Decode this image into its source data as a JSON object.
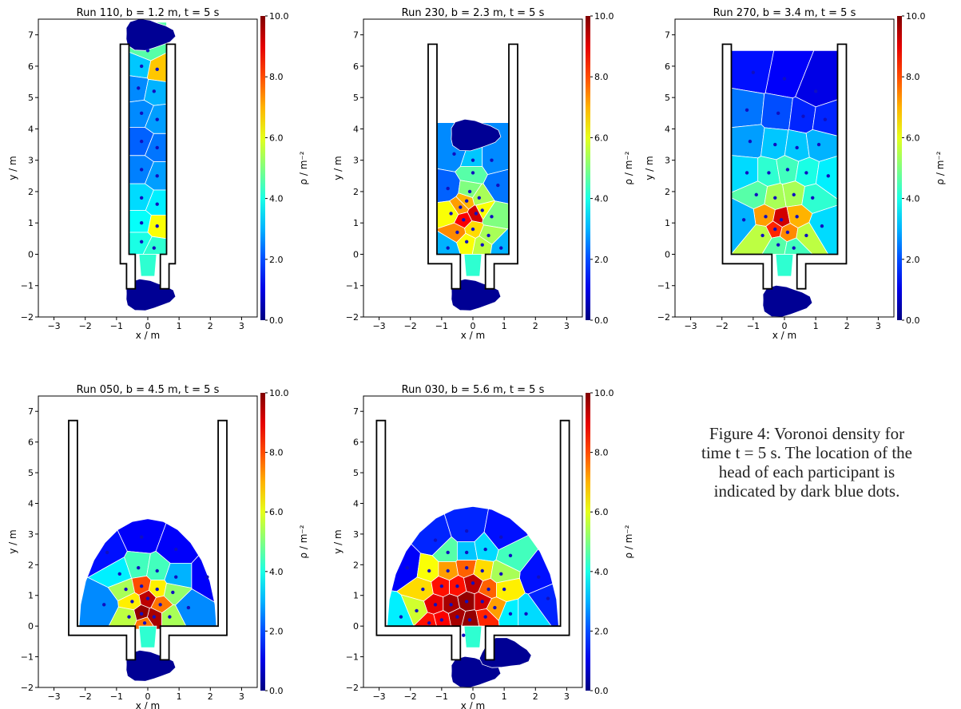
{
  "chart_data": [
    {
      "type": "heatmap",
      "title": "Run 110, b = 1.2 m, t = 5 s",
      "xlabel": "x / m",
      "ylabel": "y / m",
      "colorbar_label": "ρ / m⁻²",
      "xlim": [
        -3.5,
        3.5
      ],
      "ylim": [
        -2,
        7.5
      ],
      "xticks": [
        -3,
        -2,
        -1,
        0,
        1,
        2,
        3
      ],
      "yticks": [
        -2,
        -1,
        0,
        1,
        2,
        3,
        4,
        5,
        6,
        7
      ],
      "cbar_ticks": [
        "0.0",
        "2.0",
        "4.0",
        "6.0",
        "8.0",
        "10.0"
      ],
      "colormap": "jet",
      "bottleneck_width": 1.2,
      "time_s": 5,
      "room_halfwidth": 0.6,
      "crowd_top": 7.4,
      "crowd_front": 0,
      "points": [
        [
          0,
          6.5
        ],
        [
          -0.2,
          6
        ],
        [
          0.3,
          5.9
        ],
        [
          -0.3,
          5.3
        ],
        [
          0.2,
          5.2
        ],
        [
          -0.2,
          4.5
        ],
        [
          0.3,
          4.3
        ],
        [
          -0.2,
          3.6
        ],
        [
          0.3,
          3.4
        ],
        [
          -0.2,
          2.7
        ],
        [
          0.3,
          2.5
        ],
        [
          -0.2,
          1.8
        ],
        [
          0.3,
          1.6
        ],
        [
          -0.2,
          1
        ],
        [
          0.3,
          0.9
        ],
        [
          -0.2,
          0.4
        ],
        [
          0.2,
          0.2
        ]
      ],
      "density": [
        4.6,
        3.2,
        6.8,
        2.6,
        3,
        2.6,
        2.8,
        2.2,
        2.4,
        2.5,
        2.8,
        3.4,
        3.6,
        3.8,
        6.2,
        4,
        4.2
      ],
      "cells_out": [
        [
          0,
          7
        ],
        [
          0,
          -1.3
        ]
      ]
    },
    {
      "type": "heatmap",
      "title": "Run 230, b = 2.3 m, t = 5 s",
      "xlabel": "x / m",
      "ylabel": "y / m",
      "colorbar_label": "ρ / m⁻²",
      "xlim": [
        -3.5,
        3.5
      ],
      "ylim": [
        -2,
        7.5
      ],
      "xticks": [
        -3,
        -2,
        -1,
        0,
        1,
        2,
        3
      ],
      "yticks": [
        -2,
        -1,
        0,
        1,
        2,
        3,
        4,
        5,
        6,
        7
      ],
      "cbar_ticks": [
        "0.0",
        "2.0",
        "4.0",
        "6.0",
        "8.0",
        "10.0"
      ],
      "colormap": "jet",
      "bottleneck_width": 2.3,
      "time_s": 5,
      "room_halfwidth": 1.15,
      "crowd_top": 4.2,
      "crowd_front": 0,
      "points": [
        [
          0,
          3
        ],
        [
          -0.6,
          3.2
        ],
        [
          0.6,
          3
        ],
        [
          0,
          2.6
        ],
        [
          -0.8,
          2.1
        ],
        [
          0.8,
          2.2
        ],
        [
          -0.1,
          2
        ],
        [
          0.2,
          1.8
        ],
        [
          -0.4,
          1.5
        ],
        [
          0.1,
          1.3
        ],
        [
          -0.2,
          1.7
        ],
        [
          -0.7,
          1.3
        ],
        [
          0.6,
          1.2
        ],
        [
          -0.3,
          1.1
        ],
        [
          0.3,
          1.4
        ],
        [
          -0.5,
          0.7
        ],
        [
          0,
          0.8
        ],
        [
          0.5,
          0.6
        ],
        [
          -0.2,
          0.4
        ],
        [
          0.3,
          0.3
        ],
        [
          -0.8,
          0.2
        ],
        [
          0.9,
          0.2
        ]
      ],
      "density": [
        3.2,
        2.6,
        2.6,
        4.6,
        2.2,
        2.4,
        5,
        5.4,
        7.2,
        9.2,
        7,
        6.2,
        5,
        8.8,
        6.2,
        7.4,
        6.6,
        5.4,
        6.2,
        5.6,
        3,
        3
      ],
      "cells_out": [
        [
          0,
          3.8
        ],
        [
          0,
          -1.3
        ]
      ]
    },
    {
      "type": "heatmap",
      "title": "Run 270, b = 3.4 m, t = 5 s",
      "xlabel": "x / m",
      "ylabel": "y / m",
      "colorbar_label": "ρ / m⁻²",
      "xlim": [
        -3.5,
        3.5
      ],
      "ylim": [
        -2,
        7.5
      ],
      "xticks": [
        -3,
        -2,
        -1,
        0,
        1,
        2,
        3
      ],
      "yticks": [
        -2,
        -1,
        0,
        1,
        2,
        3,
        4,
        5,
        6,
        7
      ],
      "cbar_ticks": [
        "0.0",
        "2.0",
        "4.0",
        "6.0",
        "8.0",
        "10.0"
      ],
      "colormap": "jet",
      "bottleneck_width": 3.4,
      "time_s": 5,
      "room_halfwidth": 1.7,
      "crowd_top": 6.5,
      "crowd_front": 0,
      "points": [
        [
          -1,
          5.8
        ],
        [
          0,
          5.6
        ],
        [
          1,
          5.2
        ],
        [
          -1.2,
          4.6
        ],
        [
          -0.2,
          4.5
        ],
        [
          0.6,
          4.4
        ],
        [
          1.3,
          4.3
        ],
        [
          -1.1,
          3.6
        ],
        [
          -0.3,
          3.5
        ],
        [
          0.4,
          3.4
        ],
        [
          1.1,
          3.5
        ],
        [
          -1.2,
          2.6
        ],
        [
          -0.5,
          2.6
        ],
        [
          0.1,
          2.7
        ],
        [
          0.7,
          2.6
        ],
        [
          1.4,
          2.5
        ],
        [
          -0.9,
          1.9
        ],
        [
          -0.3,
          1.8
        ],
        [
          0.3,
          1.9
        ],
        [
          0.9,
          1.8
        ],
        [
          -0.6,
          1.2
        ],
        [
          -0.1,
          1.1
        ],
        [
          0.4,
          1.2
        ],
        [
          -0.3,
          0.8
        ],
        [
          0.1,
          0.7
        ],
        [
          -0.7,
          0.6
        ],
        [
          0.7,
          0.6
        ],
        [
          -0.2,
          0.3
        ],
        [
          0.3,
          0.2
        ],
        [
          1.2,
          0.9
        ],
        [
          -1.3,
          1.1
        ]
      ],
      "density": [
        1.4,
        1.2,
        1,
        2.4,
        2,
        1.6,
        1.6,
        2.8,
        3.2,
        3.2,
        3,
        3.4,
        4.2,
        4.4,
        4,
        3.6,
        4.6,
        5.4,
        5.4,
        4.2,
        7.2,
        9.2,
        7,
        8.4,
        7.4,
        5.6,
        5.6,
        4.6,
        4.4,
        3.4,
        3
      ],
      "cells_out": [
        [
          0,
          -1.5
        ]
      ]
    },
    {
      "type": "heatmap",
      "title": "Run 050, b = 4.5 m, t = 5 s",
      "xlabel": "x / m",
      "ylabel": "y / m",
      "colorbar_label": "ρ / m⁻²",
      "xlim": [
        -3.5,
        3.5
      ],
      "ylim": [
        -2,
        7.5
      ],
      "xticks": [
        -3,
        -2,
        -1,
        0,
        1,
        2,
        3
      ],
      "yticks": [
        -2,
        -1,
        0,
        1,
        2,
        3,
        4,
        5,
        6,
        7
      ],
      "cbar_ticks": [
        "0.0",
        "2.0",
        "4.0",
        "6.0",
        "8.0",
        "10.0"
      ],
      "colormap": "jet",
      "bottleneck_width": 4.5,
      "time_s": 5,
      "room_halfwidth": 2.25,
      "crowd_top": 3.5,
      "crowd_front": -0.1,
      "points": [
        [
          -1.3,
          2.4
        ],
        [
          -0.2,
          2.9
        ],
        [
          0.9,
          2.5
        ],
        [
          1.9,
          1.6
        ],
        [
          -0.9,
          1.7
        ],
        [
          -0.3,
          1.9
        ],
        [
          0.3,
          1.8
        ],
        [
          0.9,
          1.6
        ],
        [
          -0.7,
          1.2
        ],
        [
          -0.2,
          1.3
        ],
        [
          0.3,
          1.2
        ],
        [
          0.8,
          1.1
        ],
        [
          -0.5,
          0.8
        ],
        [
          0,
          0.9
        ],
        [
          0.4,
          0.7
        ],
        [
          -0.2,
          0.4
        ],
        [
          0.2,
          0.3
        ],
        [
          -0.6,
          0.3
        ],
        [
          0.7,
          0.3
        ],
        [
          -1.4,
          0.7
        ],
        [
          1.3,
          0.6
        ],
        [
          -0.1,
          0.1
        ]
      ],
      "density": [
        1.4,
        1.2,
        1.2,
        1.2,
        3.6,
        4.4,
        4.4,
        3,
        5.4,
        8,
        6.4,
        5.2,
        6.4,
        9.4,
        7.6,
        9.8,
        9.6,
        5.6,
        5.4,
        2.6,
        2.6,
        7.6
      ],
      "cells_out": [
        [
          0,
          -1.3
        ]
      ]
    },
    {
      "type": "heatmap",
      "title": "Run 030, b = 5.6 m, t = 5 s",
      "xlabel": "x / m",
      "ylabel": "y / m",
      "colorbar_label": "ρ / m⁻²",
      "xlim": [
        -3.5,
        3.5
      ],
      "ylim": [
        -2,
        7.5
      ],
      "xticks": [
        -3,
        -2,
        -1,
        0,
        1,
        2,
        3
      ],
      "yticks": [
        -2,
        -1,
        0,
        1,
        2,
        3,
        4,
        5,
        6,
        7
      ],
      "cbar_ticks": [
        "0.0",
        "2.0",
        "4.0",
        "6.0",
        "8.0",
        "10.0"
      ],
      "colormap": "jet",
      "bottleneck_width": 5.6,
      "time_s": 5,
      "room_halfwidth": 2.8,
      "crowd_top": 3.9,
      "crowd_front": 0,
      "points": [
        [
          -1.2,
          2.8
        ],
        [
          -0.2,
          3.1
        ],
        [
          0.9,
          2.9
        ],
        [
          -2.1,
          1.9
        ],
        [
          2.1,
          1.6
        ],
        [
          -0.8,
          2.4
        ],
        [
          -0.2,
          2.4
        ],
        [
          0.4,
          2.5
        ],
        [
          1.2,
          2.3
        ],
        [
          -1.4,
          1.8
        ],
        [
          -0.8,
          1.8
        ],
        [
          -0.2,
          1.9
        ],
        [
          0.3,
          1.8
        ],
        [
          0.9,
          1.7
        ],
        [
          -1.6,
          1.2
        ],
        [
          -1,
          1.3
        ],
        [
          -0.5,
          1.3
        ],
        [
          0,
          1.4
        ],
        [
          0.5,
          1.2
        ],
        [
          1,
          1.2
        ],
        [
          -1.8,
          0.5
        ],
        [
          -1.2,
          0.7
        ],
        [
          -0.7,
          0.7
        ],
        [
          -0.2,
          0.8
        ],
        [
          0.3,
          0.8
        ],
        [
          0.7,
          0.6
        ],
        [
          -1,
          0.2
        ],
        [
          -0.5,
          0.3
        ],
        [
          -0.1,
          0.2
        ],
        [
          0.4,
          0.3
        ],
        [
          1.2,
          0.4
        ],
        [
          -2.3,
          0.3
        ],
        [
          1.7,
          0.4
        ],
        [
          -1.4,
          0.1
        ],
        [
          -0.3,
          -0.3
        ],
        [
          2.4,
          0.9
        ]
      ],
      "density": [
        1.6,
        1.6,
        1.4,
        1.2,
        1.4,
        4.6,
        3.2,
        3.4,
        4.4,
        6.2,
        7.2,
        7.8,
        6.6,
        5.4,
        6.6,
        8.6,
        8.6,
        9.4,
        7.8,
        6.4,
        5.8,
        9,
        9.6,
        9.8,
        9.2,
        7.2,
        8.8,
        9.6,
        9.8,
        8.4,
        3.6,
        3.6,
        3.4,
        8.6,
        5.2,
        1.6
      ],
      "cells_out": [
        [
          0,
          -1.5
        ],
        [
          1,
          -0.9
        ]
      ]
    }
  ],
  "caption": {
    "line1": "Figure 4: Voronoi density for",
    "line2": "time t = 5 s. The location of the",
    "line3": "head of each participant is",
    "line4": "indicated by dark blue dots."
  }
}
